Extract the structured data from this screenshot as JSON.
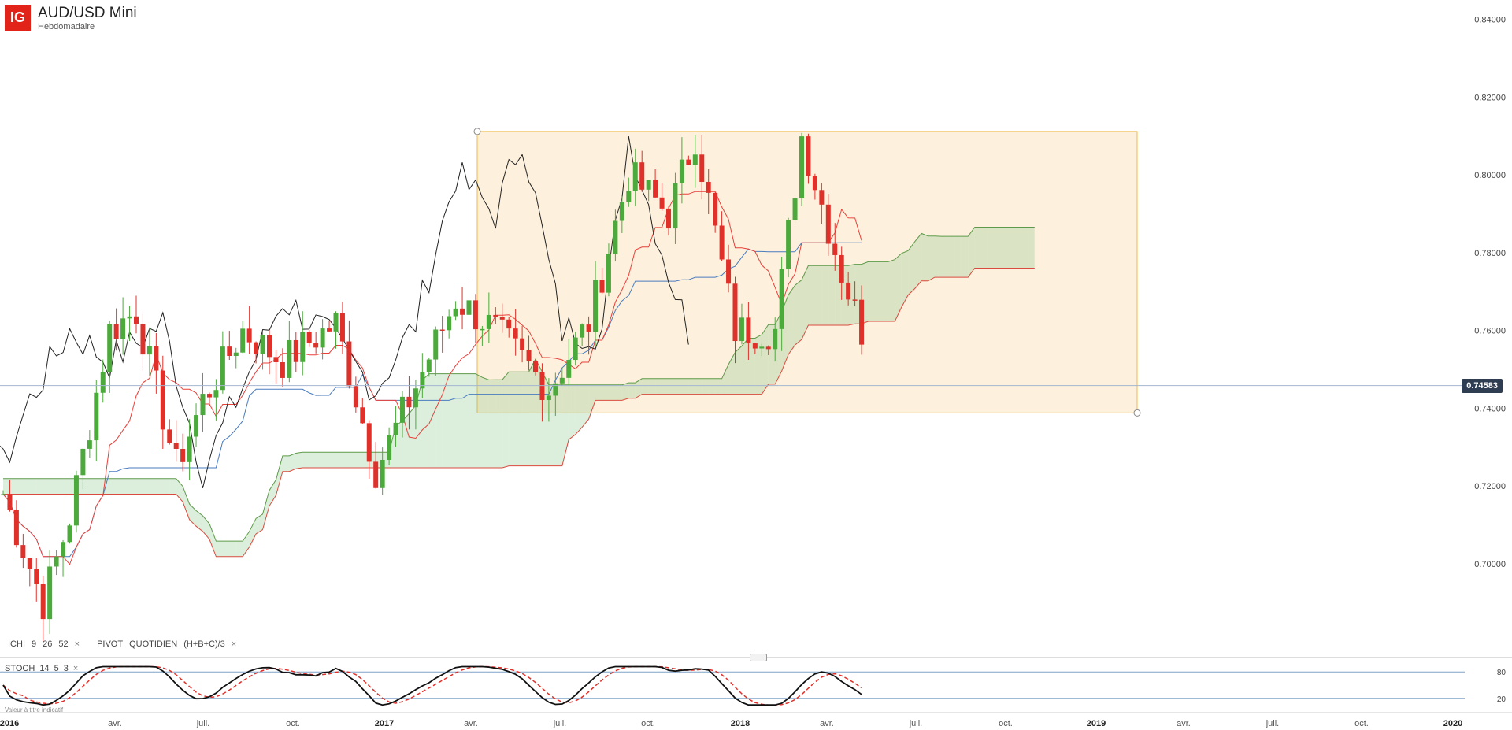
{
  "header": {
    "logo_text": "IG",
    "title": "AUD/USD Mini",
    "subtitle": "Hebdomadaire"
  },
  "indicators": {
    "ichimoku": {
      "label": "ICHI",
      "p1": "9",
      "p2": "26",
      "p3": "52"
    },
    "pivot": {
      "label": "PIVOT",
      "mode": "QUOTIDIEN",
      "formula": "(H+B+C)/3"
    },
    "stoch": {
      "label": "STOCH",
      "p1": "14",
      "p2": "5",
      "p3": "3"
    },
    "close_icon": "×"
  },
  "disclaimer": "Valeur à titre indicatif",
  "current_price": "0.74583",
  "colors": {
    "bull": "#4caa3c",
    "bear": "#e0302a",
    "tenkan": "#e8403a",
    "kijun": "#4a7bbf",
    "chikou": "#222222",
    "cloud_bear": "rgba(240,140,140,0.32)",
    "cloud_bull": "rgba(140,200,140,0.30)",
    "span_a": "#d94b3f",
    "span_b": "#5e9a4a",
    "rect_fill": "rgba(250,220,170,0.40)",
    "rect_stroke": "#f0b84a",
    "price_line": "#a3b6d0"
  },
  "chart_data": {
    "type": "candlestick",
    "timeframe": "weekly",
    "ylim": [
      0.685,
      0.845
    ],
    "y_ticks": [
      "0.84000",
      "0.82000",
      "0.80000",
      "0.78000",
      "0.76000",
      "0.74000",
      "0.72000",
      "0.70000"
    ],
    "x_ticks": [
      "2016",
      "avr.",
      "juil.",
      "oct.",
      "2017",
      "avr.",
      "juil.",
      "oct.",
      "2018",
      "avr.",
      "juil.",
      "oct.",
      "2019",
      "avr.",
      "juil.",
      "oct.",
      "2020"
    ],
    "current_price": 0.74583,
    "rectangle": {
      "top": 0.8112,
      "bottom": 0.7388
    },
    "stoch_levels": [
      "80",
      "20"
    ]
  }
}
